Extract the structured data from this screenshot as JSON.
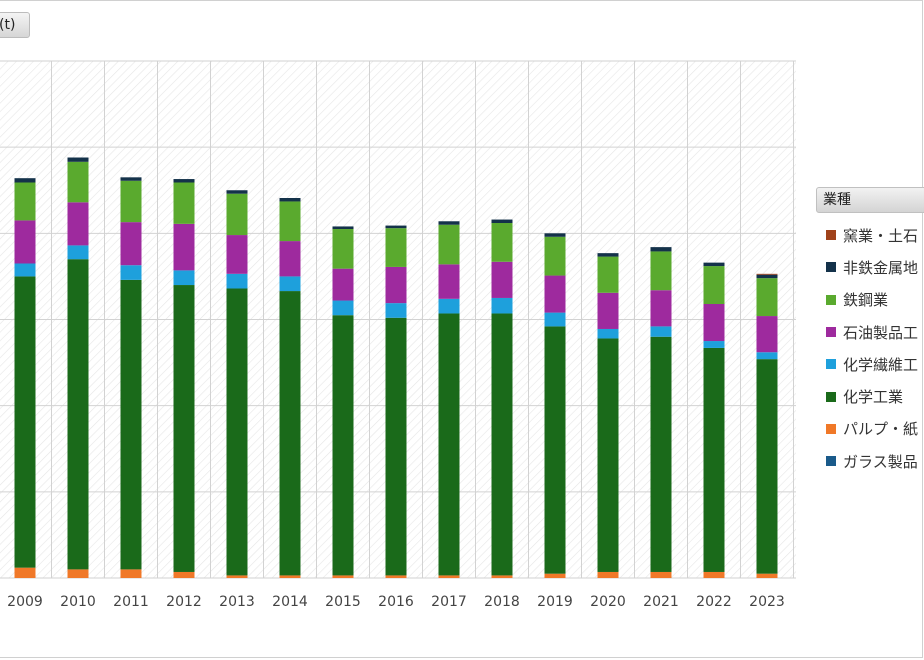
{
  "unit_label": "(t)",
  "legend": {
    "title": "業種",
    "items": [
      {
        "label": "窯業・土石",
        "color": "#a0421a"
      },
      {
        "label": "非鉄金属地",
        "color": "#14324a"
      },
      {
        "label": "鉄鋼業",
        "color": "#5aaa2e"
      },
      {
        "label": "石油製品工",
        "color": "#9e2a9e"
      },
      {
        "label": "化学繊維工",
        "color": "#1ea0dc"
      },
      {
        "label": "化学工業",
        "color": "#1a6a1a"
      },
      {
        "label": "パルプ・紙",
        "color": "#f07828"
      },
      {
        "label": "ガラス製品",
        "color": "#1a5a8a"
      }
    ]
  },
  "chart_data": {
    "type": "bar",
    "stacked": true,
    "categories": [
      "2009",
      "2010",
      "2011",
      "2012",
      "2013",
      "2014",
      "2015",
      "2016",
      "2017",
      "2018",
      "2019",
      "2020",
      "2021",
      "2022",
      "2023"
    ],
    "ylim": [
      0,
      600
    ],
    "grid": true,
    "legend_position": "right",
    "series": [
      {
        "name": "ガラス製品",
        "color": "#1a5a8a",
        "values": [
          0,
          0,
          0,
          0,
          0,
          0,
          0,
          0,
          0,
          0,
          0,
          0,
          0,
          0,
          0
        ]
      },
      {
        "name": "パルプ・紙",
        "color": "#f07828",
        "values": [
          12,
          10,
          10,
          7,
          3,
          3,
          3,
          3,
          3,
          3,
          5,
          7,
          7,
          7,
          5
        ]
      },
      {
        "name": "化学工業",
        "color": "#1a6a1a",
        "values": [
          338,
          360,
          336,
          333,
          333,
          330,
          302,
          299,
          304,
          304,
          287,
          271,
          273,
          260,
          249
        ]
      },
      {
        "name": "化学繊維工",
        "color": "#1ea0dc",
        "values": [
          15,
          16,
          17,
          17,
          17,
          17,
          17,
          17,
          17,
          18,
          16,
          11,
          12,
          8,
          8
        ]
      },
      {
        "name": "石油製品工",
        "color": "#9e2a9e",
        "values": [
          50,
          50,
          50,
          54,
          45,
          41,
          37,
          42,
          40,
          42,
          43,
          42,
          42,
          43,
          42
        ]
      },
      {
        "name": "鉄鋼業",
        "color": "#5aaa2e",
        "values": [
          44,
          47,
          48,
          48,
          48,
          46,
          46,
          45,
          46,
          45,
          45,
          42,
          45,
          44,
          44
        ]
      },
      {
        "name": "非鉄金属地",
        "color": "#14324a",
        "values": [
          5,
          5,
          4,
          4,
          4,
          4,
          3,
          3,
          4,
          4,
          4,
          4,
          5,
          4,
          4
        ]
      },
      {
        "name": "窯業・土石",
        "color": "#a0421a",
        "values": [
          0,
          0,
          0,
          0,
          0,
          0,
          0,
          0,
          0,
          0,
          0,
          0,
          0,
          0,
          1
        ]
      }
    ]
  }
}
